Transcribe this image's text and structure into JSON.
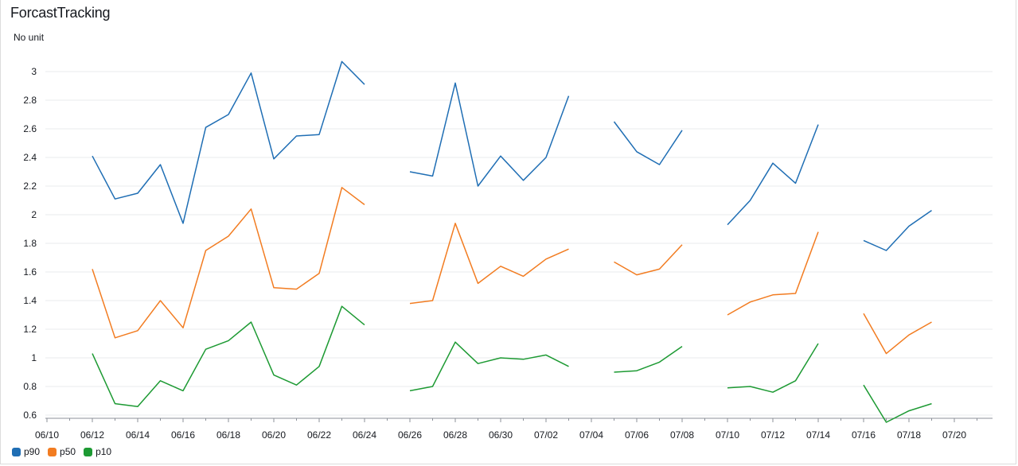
{
  "widget": {
    "title": "ForcastTracking",
    "unit_label": "No unit"
  },
  "chart_data": {
    "type": "line",
    "title": "ForcastTracking",
    "ylabel": "No unit",
    "xlabel": "",
    "x_ticks": [
      "06/10",
      "06/12",
      "06/14",
      "06/16",
      "06/18",
      "06/20",
      "06/22",
      "06/24",
      "06/26",
      "06/28",
      "06/30",
      "07/02",
      "07/04",
      "07/06",
      "07/08",
      "07/10",
      "07/12",
      "07/14",
      "07/16",
      "07/18",
      "07/20"
    ],
    "y_ticks": [
      "0.6",
      "0.8",
      "1",
      "1.2",
      "1.4",
      "1.6",
      "1.8",
      "2",
      "2.2",
      "2.4",
      "2.6",
      "2.8",
      "3"
    ],
    "xlim": [
      "06/10",
      "07/22"
    ],
    "ylim": [
      0.55,
      3.15
    ],
    "grid": "horizontal",
    "legend_position": "bottom-left",
    "series": [
      {
        "name": "p90",
        "color": "#1f6eb4",
        "segments": [
          [
            [
              "06/12",
              2.41
            ],
            [
              "06/13",
              2.11
            ],
            [
              "06/14",
              2.15
            ],
            [
              "06/15",
              2.35
            ],
            [
              "06/16",
              1.94
            ],
            [
              "06/17",
              2.61
            ],
            [
              "06/18",
              2.7
            ],
            [
              "06/19",
              2.99
            ],
            [
              "06/20",
              2.39
            ],
            [
              "06/21",
              2.55
            ],
            [
              "06/22",
              2.56
            ],
            [
              "06/23",
              3.07
            ],
            [
              "06/24",
              2.91
            ]
          ],
          [
            [
              "06/26",
              2.3
            ],
            [
              "06/27",
              2.27
            ],
            [
              "06/28",
              2.92
            ],
            [
              "06/29",
              2.2
            ],
            [
              "06/30",
              2.41
            ],
            [
              "07/01",
              2.24
            ],
            [
              "07/02",
              2.4
            ],
            [
              "07/03",
              2.83
            ]
          ],
          [
            [
              "07/05",
              2.65
            ],
            [
              "07/06",
              2.44
            ],
            [
              "07/07",
              2.35
            ],
            [
              "07/08",
              2.59
            ]
          ],
          [
            [
              "07/10",
              1.93
            ],
            [
              "07/11",
              2.1
            ],
            [
              "07/12",
              2.36
            ],
            [
              "07/13",
              2.22
            ],
            [
              "07/14",
              2.63
            ]
          ],
          [
            [
              "07/16",
              1.82
            ],
            [
              "07/17",
              1.75
            ],
            [
              "07/18",
              1.92
            ],
            [
              "07/19",
              2.03
            ]
          ]
        ]
      },
      {
        "name": "p50",
        "color": "#f27c21",
        "segments": [
          [
            [
              "06/12",
              1.62
            ],
            [
              "06/13",
              1.14
            ],
            [
              "06/14",
              1.19
            ],
            [
              "06/15",
              1.4
            ],
            [
              "06/16",
              1.21
            ],
            [
              "06/17",
              1.75
            ],
            [
              "06/18",
              1.85
            ],
            [
              "06/19",
              2.04
            ],
            [
              "06/20",
              1.49
            ],
            [
              "06/21",
              1.48
            ],
            [
              "06/22",
              1.59
            ],
            [
              "06/23",
              2.19
            ],
            [
              "06/24",
              2.07
            ]
          ],
          [
            [
              "06/26",
              1.38
            ],
            [
              "06/27",
              1.4
            ],
            [
              "06/28",
              1.94
            ],
            [
              "06/29",
              1.52
            ],
            [
              "06/30",
              1.64
            ],
            [
              "07/01",
              1.57
            ],
            [
              "07/02",
              1.69
            ],
            [
              "07/03",
              1.76
            ]
          ],
          [
            [
              "07/05",
              1.67
            ],
            [
              "07/06",
              1.58
            ],
            [
              "07/07",
              1.62
            ],
            [
              "07/08",
              1.79
            ]
          ],
          [
            [
              "07/10",
              1.3
            ],
            [
              "07/11",
              1.39
            ],
            [
              "07/12",
              1.44
            ],
            [
              "07/13",
              1.45
            ],
            [
              "07/14",
              1.88
            ]
          ],
          [
            [
              "07/16",
              1.31
            ],
            [
              "07/17",
              1.03
            ],
            [
              "07/18",
              1.16
            ],
            [
              "07/19",
              1.25
            ]
          ]
        ]
      },
      {
        "name": "p10",
        "color": "#1d9a33",
        "segments": [
          [
            [
              "06/12",
              1.03
            ],
            [
              "06/13",
              0.68
            ],
            [
              "06/14",
              0.66
            ],
            [
              "06/15",
              0.84
            ],
            [
              "06/16",
              0.77
            ],
            [
              "06/17",
              1.06
            ],
            [
              "06/18",
              1.12
            ],
            [
              "06/19",
              1.25
            ],
            [
              "06/20",
              0.88
            ],
            [
              "06/21",
              0.81
            ],
            [
              "06/22",
              0.94
            ],
            [
              "06/23",
              1.36
            ],
            [
              "06/24",
              1.23
            ]
          ],
          [
            [
              "06/26",
              0.77
            ],
            [
              "06/27",
              0.8
            ],
            [
              "06/28",
              1.11
            ],
            [
              "06/29",
              0.96
            ],
            [
              "06/30",
              1.0
            ],
            [
              "07/01",
              0.99
            ],
            [
              "07/02",
              1.02
            ],
            [
              "07/03",
              0.94
            ]
          ],
          [
            [
              "07/05",
              0.9
            ],
            [
              "07/06",
              0.91
            ],
            [
              "07/07",
              0.97
            ],
            [
              "07/08",
              1.08
            ]
          ],
          [
            [
              "07/10",
              0.79
            ],
            [
              "07/11",
              0.8
            ],
            [
              "07/12",
              0.76
            ],
            [
              "07/13",
              0.84
            ],
            [
              "07/14",
              1.1
            ]
          ],
          [
            [
              "07/16",
              0.81
            ],
            [
              "07/17",
              0.55
            ],
            [
              "07/18",
              0.63
            ],
            [
              "07/19",
              0.68
            ]
          ]
        ]
      }
    ]
  }
}
